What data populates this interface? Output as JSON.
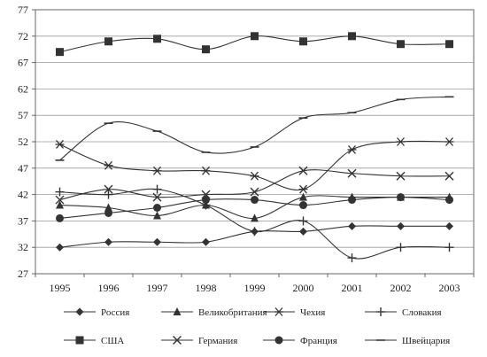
{
  "chart_data": {
    "type": "line",
    "x": [
      "1995",
      "1996",
      "1997",
      "1998",
      "1999",
      "2000",
      "2001",
      "2002",
      "2003"
    ],
    "ylim": [
      27,
      77
    ],
    "yticks": [
      27,
      32,
      37,
      42,
      47,
      52,
      57,
      62,
      67,
      72,
      77
    ],
    "grid": "horizontal",
    "legend_position": "bottom",
    "series": [
      {
        "name": "Россия",
        "marker": "diamond",
        "color": "#333333",
        "values": [
          32,
          33,
          33,
          33,
          35,
          35,
          36,
          36,
          36
        ]
      },
      {
        "name": "Великобритания",
        "marker": "triangle",
        "color": "#333333",
        "values": [
          40,
          39.5,
          38,
          40,
          37.5,
          41.5,
          41.5,
          41.5,
          41.5
        ]
      },
      {
        "name": "Чехия",
        "marker": "asterisk",
        "color": "#333333",
        "values": [
          51.5,
          47.5,
          46.5,
          46.5,
          45.5,
          43,
          50.5,
          52,
          52
        ]
      },
      {
        "name": "Словакия",
        "marker": "plus",
        "color": "#333333",
        "values": [
          42.5,
          42,
          43,
          40,
          35,
          37,
          30,
          32,
          32
        ]
      },
      {
        "name": "США",
        "marker": "square",
        "color": "#333333",
        "values": [
          69,
          71,
          71.5,
          69.5,
          72,
          71,
          72,
          70.5,
          70.5
        ]
      },
      {
        "name": "Германия",
        "marker": "cross",
        "color": "#333333",
        "values": [
          41,
          43,
          41.5,
          42,
          42.5,
          46.5,
          46,
          45.5,
          45.5
        ]
      },
      {
        "name": "Франция",
        "marker": "circle",
        "color": "#333333",
        "values": [
          37.5,
          38.5,
          39.5,
          41,
          41,
          40,
          41,
          41.5,
          41
        ]
      },
      {
        "name": "Швейцария",
        "marker": "dash",
        "color": "#333333",
        "values": [
          48.5,
          55.5,
          54,
          50,
          51,
          56.5,
          57.5,
          60,
          60.5
        ]
      }
    ]
  }
}
